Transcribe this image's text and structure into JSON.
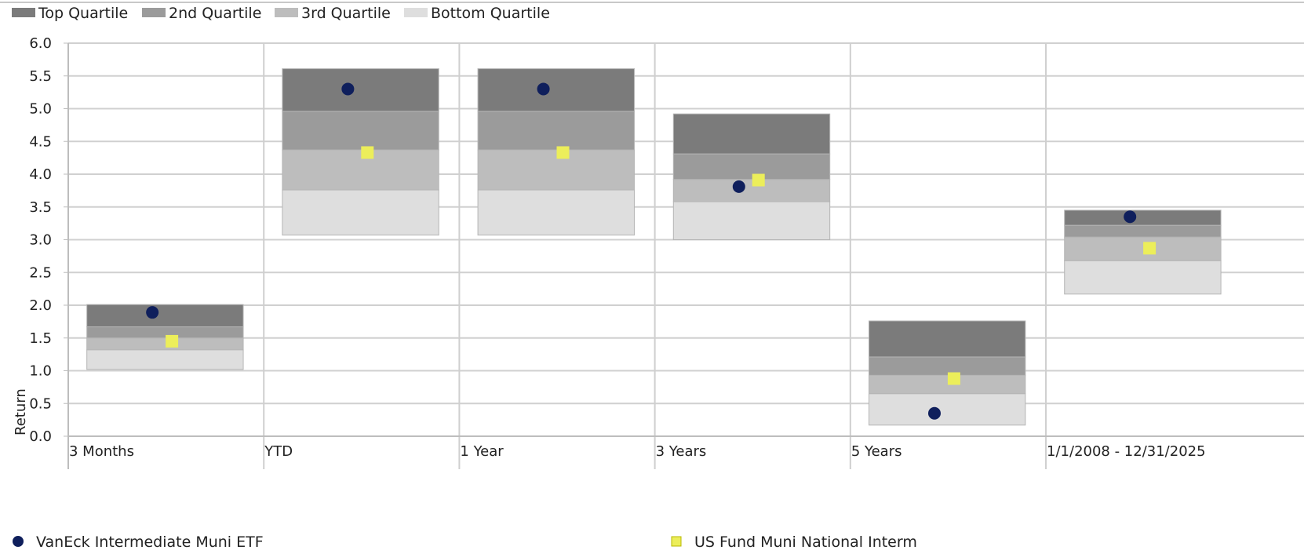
{
  "chart_data": {
    "type": "quartile-range",
    "ylabel": "Return",
    "ylim": [
      0.0,
      6.0
    ],
    "y_ticks": [
      "0.0",
      "0.5",
      "1.0",
      "1.5",
      "2.0",
      "2.5",
      "3.0",
      "3.5",
      "4.0",
      "4.5",
      "5.0",
      "5.5",
      "6.0"
    ],
    "grid": true,
    "categories": [
      "3 Months",
      "YTD",
      "1 Year",
      "3 Years",
      "5 Years",
      "1/1/2008 - 12/31/2025"
    ],
    "quartile_legend": {
      "position": "top-left",
      "items": [
        {
          "label": "Top Quartile",
          "color": "#7b7b7b"
        },
        {
          "label": "2nd Quartile",
          "color": "#9b9b9b"
        },
        {
          "label": "3rd Quartile",
          "color": "#bdbdbd"
        },
        {
          "label": "Bottom Quartile",
          "color": "#dedede"
        }
      ]
    },
    "quartile_bounds": [
      {
        "category": "3 Months",
        "bounds": [
          1.02,
          1.32,
          1.5,
          1.67,
          2.01
        ]
      },
      {
        "category": "YTD",
        "bounds": [
          3.07,
          3.76,
          4.37,
          4.96,
          5.61
        ]
      },
      {
        "category": "1 Year",
        "bounds": [
          3.07,
          3.76,
          4.37,
          4.96,
          5.61
        ]
      },
      {
        "category": "3 Years",
        "bounds": [
          3.0,
          3.58,
          3.92,
          4.31,
          4.92
        ]
      },
      {
        "category": "5 Years",
        "bounds": [
          0.17,
          0.65,
          0.93,
          1.21,
          1.76
        ]
      },
      {
        "category": "1/1/2008 - 12/31/2025",
        "bounds": [
          2.17,
          2.68,
          3.04,
          3.22,
          3.45
        ]
      }
    ],
    "series": [
      {
        "name": "VanEck Intermediate Muni ETF",
        "marker": "circle",
        "color": "#0f1f5c",
        "values": [
          1.89,
          5.3,
          5.3,
          3.81,
          0.35,
          3.35
        ]
      },
      {
        "name": "US Fund Muni National Interm",
        "marker": "square",
        "color": "#ecee5a",
        "values": [
          1.45,
          4.33,
          4.33,
          3.91,
          0.88,
          2.87
        ]
      }
    ]
  }
}
